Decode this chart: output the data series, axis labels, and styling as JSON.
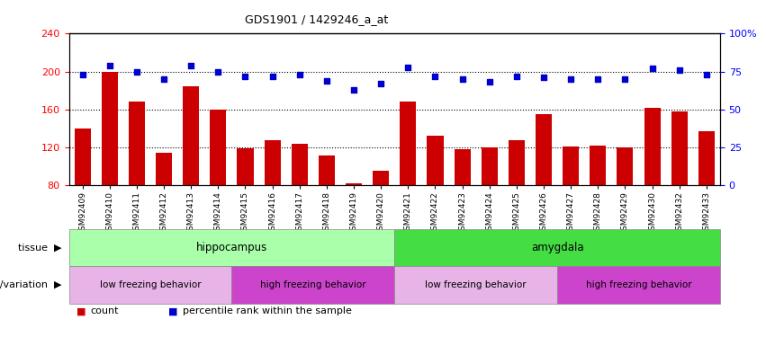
{
  "title": "GDS1901 / 1429246_a_at",
  "samples": [
    "GSM92409",
    "GSM92410",
    "GSM92411",
    "GSM92412",
    "GSM92413",
    "GSM92414",
    "GSM92415",
    "GSM92416",
    "GSM92417",
    "GSM92418",
    "GSM92419",
    "GSM92420",
    "GSM92421",
    "GSM92422",
    "GSM92423",
    "GSM92424",
    "GSM92425",
    "GSM92426",
    "GSM92427",
    "GSM92428",
    "GSM92429",
    "GSM92430",
    "GSM92432",
    "GSM92433"
  ],
  "counts": [
    140,
    200,
    168,
    114,
    185,
    160,
    119,
    128,
    124,
    112,
    82,
    95,
    168,
    132,
    118,
    120,
    128,
    155,
    121,
    122,
    120,
    162,
    158,
    137
  ],
  "percentiles": [
    73,
    79,
    75,
    70,
    79,
    75,
    72,
    72,
    73,
    69,
    63,
    67,
    78,
    72,
    70,
    68,
    72,
    71,
    70,
    70,
    70,
    77,
    76,
    73
  ],
  "ylim_left": [
    80,
    240
  ],
  "ylim_right": [
    0,
    100
  ],
  "yticks_left": [
    80,
    120,
    160,
    200,
    240
  ],
  "yticks_right": [
    0,
    25,
    50,
    75,
    100
  ],
  "ytick_labels_right": [
    "0",
    "25",
    "50",
    "75",
    "100%"
  ],
  "bar_color": "#cc0000",
  "dot_color": "#0000cc",
  "tissue_groups": [
    {
      "label": "hippocampus",
      "start": 0,
      "end": 12,
      "color": "#aaffaa"
    },
    {
      "label": "amygdala",
      "start": 12,
      "end": 24,
      "color": "#44dd44"
    }
  ],
  "genotype_groups": [
    {
      "label": "low freezing behavior",
      "start": 0,
      "end": 6,
      "color": "#e8b4e8"
    },
    {
      "label": "high freezing behavior",
      "start": 6,
      "end": 12,
      "color": "#cc44cc"
    },
    {
      "label": "low freezing behavior",
      "start": 12,
      "end": 18,
      "color": "#e8b4e8"
    },
    {
      "label": "high freezing behavior",
      "start": 18,
      "end": 24,
      "color": "#cc44cc"
    }
  ],
  "tissue_label": "tissue",
  "genotype_label": "genotype/variation",
  "legend_count_label": "count",
  "legend_pct_label": "percentile rank within the sample"
}
